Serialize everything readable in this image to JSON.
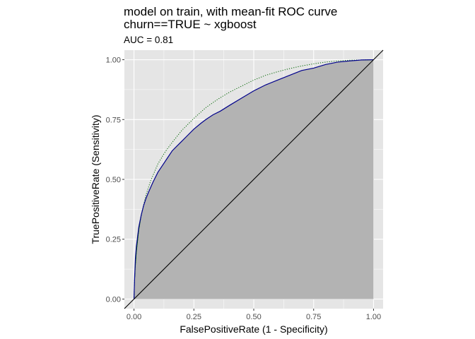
{
  "chart_data": {
    "type": "line",
    "title": "model on train, with mean-fit ROC curve",
    "title_line2": "churn==TRUE ~ xgboost",
    "subtitle": "AUC = 0.81",
    "xlabel": "FalsePositiveRate (1 - Specificity)",
    "ylabel": "TruePositiveRate (Sensitivity)",
    "xlim": [
      -0.04,
      1.04
    ],
    "ylim": [
      -0.04,
      1.04
    ],
    "xticks": [
      0.0,
      0.25,
      0.5,
      0.75,
      1.0
    ],
    "yticks": [
      0.0,
      0.25,
      0.5,
      0.75,
      1.0
    ],
    "x_tick_labels": [
      "0.00",
      "0.25",
      "0.50",
      "0.75",
      "1.00"
    ],
    "y_tick_labels": [
      "0.00",
      "0.25",
      "0.50",
      "0.75",
      "1.00"
    ],
    "grid": true,
    "colors": {
      "panel_background": "#e5e5e5",
      "grid": "#ffffff",
      "roc_area_fill": "#b3b3b3",
      "roc_line": "#00008b",
      "mean_fit_line": "#006400",
      "diagonal": "#000000"
    },
    "series": [
      {
        "x": [
          0.0,
          0.003,
          0.006,
          0.01,
          0.015,
          0.02,
          0.03,
          0.04,
          0.05,
          0.06,
          0.08,
          0.1,
          0.12,
          0.14,
          0.16,
          0.18,
          0.2,
          0.22,
          0.25,
          0.28,
          0.3,
          0.33,
          0.36,
          0.4,
          0.45,
          0.5,
          0.55,
          0.6,
          0.65,
          0.7,
          0.75,
          0.8,
          0.85,
          0.9,
          0.95,
          1.0
        ],
        "y": [
          0.0,
          0.1,
          0.17,
          0.22,
          0.26,
          0.3,
          0.35,
          0.39,
          0.42,
          0.445,
          0.49,
          0.53,
          0.56,
          0.59,
          0.62,
          0.64,
          0.66,
          0.68,
          0.71,
          0.735,
          0.75,
          0.77,
          0.785,
          0.81,
          0.84,
          0.87,
          0.895,
          0.915,
          0.935,
          0.955,
          0.965,
          0.98,
          0.99,
          0.995,
          0.999,
          1.0
        ]
      },
      {
        "x": [
          0.0,
          0.002,
          0.005,
          0.01,
          0.02,
          0.03,
          0.05,
          0.07,
          0.1,
          0.13,
          0.16,
          0.2,
          0.25,
          0.3,
          0.35,
          0.4,
          0.45,
          0.5,
          0.55,
          0.6,
          0.65,
          0.7,
          0.75,
          0.8,
          0.85,
          0.9,
          1.0
        ],
        "y": [
          0.0,
          0.07,
          0.13,
          0.2,
          0.29,
          0.35,
          0.435,
          0.495,
          0.565,
          0.615,
          0.655,
          0.705,
          0.755,
          0.8,
          0.835,
          0.865,
          0.89,
          0.915,
          0.935,
          0.95,
          0.963,
          0.974,
          0.983,
          0.99,
          0.995,
          0.998,
          1.0
        ]
      },
      {
        "x": [
          0.0,
          1.0
        ],
        "y": [
          0.0,
          1.0
        ]
      }
    ]
  }
}
